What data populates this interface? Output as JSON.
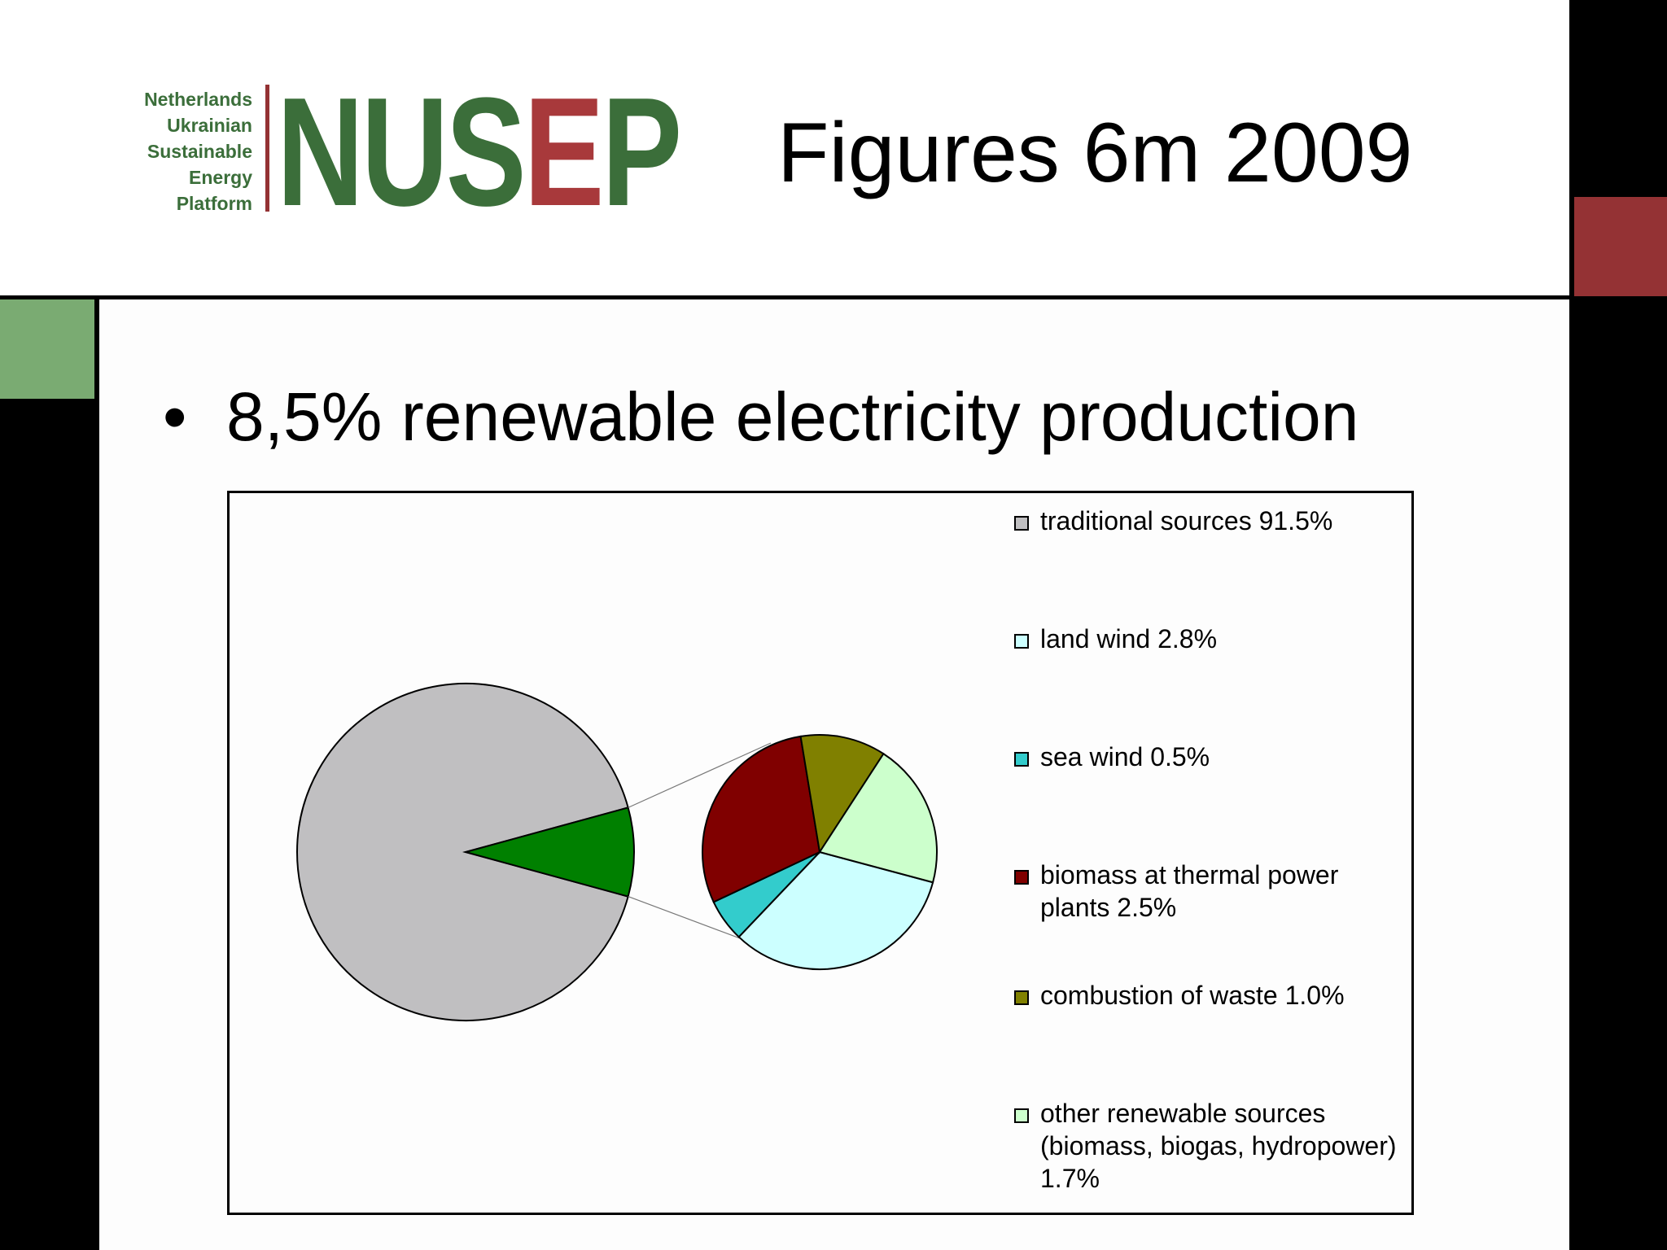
{
  "header": {
    "logo_words": [
      "Netherlands",
      "Ukrainian",
      "Sustainable",
      "Energy",
      "Platform"
    ],
    "logo_mark_green": "NUS",
    "logo_mark_red1": "E",
    "logo_mark_red2": "P",
    "title": "Figures 6m 2009"
  },
  "content": {
    "bullet_symbol": "•",
    "bullet_text": "8,5% renewable electricity production"
  },
  "colors": {
    "frame_black": "#000000",
    "brand_red": "#943234",
    "brand_green": "#3b6e3a",
    "accent_green_block": "#7aab72"
  },
  "chart_data": {
    "type": "pie",
    "variant": "pie-of-pie",
    "main_pie": [
      {
        "label": "traditional sources",
        "value": 91.5,
        "color": "#c0bfc1"
      },
      {
        "label": "renewable sources",
        "value": 8.5,
        "color": "#008000"
      }
    ],
    "secondary_pie": [
      {
        "label": "land wind",
        "value": 2.8,
        "color": "#ccffff"
      },
      {
        "label": "sea wind",
        "value": 0.5,
        "color": "#33cccc"
      },
      {
        "label": "biomass at thermal power plants",
        "value": 2.5,
        "color": "#800000"
      },
      {
        "label": "combustion of waste",
        "value": 1.0,
        "color": "#808000"
      },
      {
        "label": "other renewable sources (biomass, biogas, hydropower)",
        "value": 1.7,
        "color": "#ccffcc"
      }
    ],
    "legend_position": "right",
    "legend": [
      {
        "text": "traditional sources 91.5%",
        "color": "#c0bfc1"
      },
      {
        "text": "land wind 2.8%",
        "color": "#ccffff"
      },
      {
        "text": "sea wind 0.5%",
        "color": "#33cccc"
      },
      {
        "text": "biomass at thermal power plants 2.5%",
        "color": "#800000"
      },
      {
        "text": "combustion of waste 1.0%",
        "color": "#808000"
      },
      {
        "text": "other renewable sources (biomass, biogas, hydropower) 1.7%",
        "color": "#ccffcc"
      }
    ]
  }
}
